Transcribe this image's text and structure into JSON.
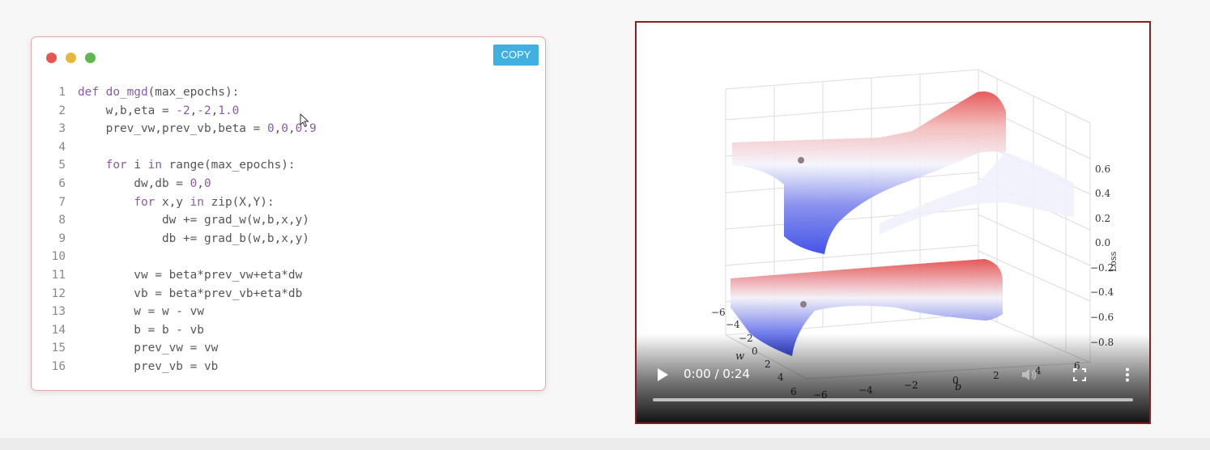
{
  "code_window": {
    "copy_label": "COPY",
    "lines": [
      {
        "n": "1",
        "tokens": [
          {
            "t": "def ",
            "c": "kw"
          },
          {
            "t": "do_mgd",
            "c": "kw"
          },
          {
            "t": "(max_epochs):"
          }
        ]
      },
      {
        "n": "2",
        "tokens": [
          {
            "t": "    w,b,eta = "
          },
          {
            "t": "-2",
            "c": "num"
          },
          {
            "t": ","
          },
          {
            "t": "-2",
            "c": "num"
          },
          {
            "t": ","
          },
          {
            "t": "1.0",
            "c": "num"
          }
        ]
      },
      {
        "n": "3",
        "tokens": [
          {
            "t": "    prev_vw,prev_vb,beta = "
          },
          {
            "t": "0",
            "c": "num"
          },
          {
            "t": ","
          },
          {
            "t": "0",
            "c": "num"
          },
          {
            "t": ","
          },
          {
            "t": "0.9",
            "c": "num"
          }
        ]
      },
      {
        "n": "4",
        "tokens": []
      },
      {
        "n": "5",
        "tokens": [
          {
            "t": "    "
          },
          {
            "t": "for",
            "c": "kw"
          },
          {
            "t": " i "
          },
          {
            "t": "in",
            "c": "kw"
          },
          {
            "t": " range(max_epochs):"
          }
        ]
      },
      {
        "n": "6",
        "tokens": [
          {
            "t": "        dw,db = "
          },
          {
            "t": "0",
            "c": "num"
          },
          {
            "t": ","
          },
          {
            "t": "0",
            "c": "num"
          }
        ]
      },
      {
        "n": "7",
        "tokens": [
          {
            "t": "        "
          },
          {
            "t": "for",
            "c": "kw"
          },
          {
            "t": " x,y "
          },
          {
            "t": "in",
            "c": "kw"
          },
          {
            "t": " zip(X,Y):"
          }
        ]
      },
      {
        "n": "8",
        "tokens": [
          {
            "t": "            dw += grad_w(w,b,x,y)"
          }
        ]
      },
      {
        "n": "9",
        "tokens": [
          {
            "t": "            db += grad_b(w,b,x,y)"
          }
        ]
      },
      {
        "n": "10",
        "tokens": []
      },
      {
        "n": "11",
        "tokens": [
          {
            "t": "        vw = beta*prev_vw+eta*dw"
          }
        ]
      },
      {
        "n": "12",
        "tokens": [
          {
            "t": "        vb = beta*prev_vb+eta*db"
          }
        ]
      },
      {
        "n": "13",
        "tokens": [
          {
            "t": "        w = w - vw"
          }
        ]
      },
      {
        "n": "14",
        "tokens": [
          {
            "t": "        b = b - vb"
          }
        ]
      },
      {
        "n": "15",
        "tokens": [
          {
            "t": "        prev_vw = vw"
          }
        ]
      },
      {
        "n": "16",
        "tokens": [
          {
            "t": "        prev_vb = vb"
          }
        ]
      }
    ]
  },
  "video": {
    "time_display": "0:00 / 0:24",
    "progress_fraction": 0,
    "plot": {
      "z_ticks": [
        "0.6",
        "0.4",
        "0.2",
        "0.0",
        "−0.2",
        "−0.4",
        "−0.6",
        "−0.8"
      ],
      "z_label": "Loss",
      "w_ticks": [
        "−6",
        "−4",
        "−2",
        "0",
        "2",
        "4",
        "6"
      ],
      "w_label": "w",
      "b_ticks": [
        "−6",
        "−4",
        "−2",
        "0",
        "2",
        "4",
        "6"
      ],
      "b_label": "b"
    }
  },
  "colors": {
    "accent": "#3fb0e0",
    "video_border": "#8a1f22",
    "surface_red": "#d93a3a",
    "surface_blue": "#2a3de0"
  },
  "icons": {
    "play": "play-icon",
    "volume": "volume-icon",
    "fullscreen": "fullscreen-icon",
    "more": "more-vert-icon",
    "cursor": "mouse-cursor-icon"
  }
}
